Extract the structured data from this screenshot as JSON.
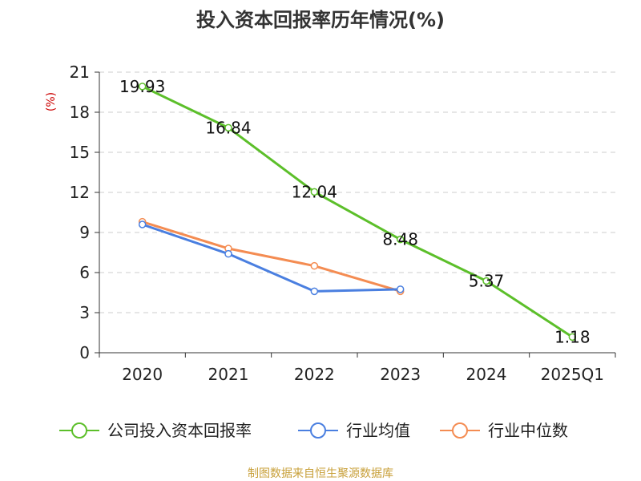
{
  "colors": {
    "company": "#5cbf2a",
    "industry_avg": "#4a7fe0",
    "industry_median": "#f48c52",
    "grid": "#cccccc",
    "unit": "#cc0000",
    "source": "#c8a03a"
  },
  "footer": {
    "source": "制图数据来自恒生聚源数据库"
  },
  "chart_data": {
    "type": "line",
    "title": "投入资本回报率历年情况(%)",
    "ylabel": "(%)",
    "xlabel": "",
    "ylim": [
      0,
      21
    ],
    "yticks": [
      0,
      3,
      6,
      9,
      12,
      15,
      18,
      21
    ],
    "grid": true,
    "legend_position": "bottom",
    "categories": [
      "2020",
      "2021",
      "2022",
      "2023",
      "2024",
      "2025Q1"
    ],
    "series": [
      {
        "name": "公司投入资本回报率",
        "color": "#5cbf2a",
        "values": [
          19.93,
          16.84,
          12.04,
          8.48,
          5.37,
          1.18
        ],
        "labels": [
          "19.93",
          "16.84",
          "12.04",
          "8.48",
          "5.37",
          "1.18"
        ]
      },
      {
        "name": "行业均值",
        "color": "#4a7fe0",
        "values": [
          9.6,
          7.4,
          4.6,
          4.75,
          null,
          null
        ]
      },
      {
        "name": "行业中位数",
        "color": "#f48c52",
        "values": [
          9.8,
          7.8,
          6.5,
          4.6,
          null,
          null
        ]
      }
    ]
  }
}
